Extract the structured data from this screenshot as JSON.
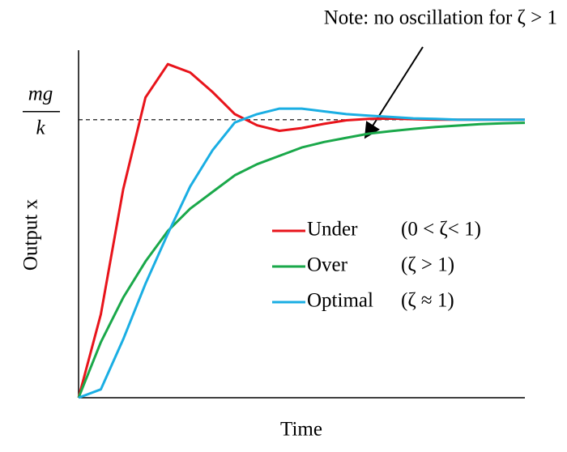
{
  "chart_data": {
    "type": "line",
    "annotation": "Note: no oscillation for ζ > 1",
    "xlabel": "Time",
    "ylabel": "Output x",
    "xlim": [
      0,
      10
    ],
    "ylim": [
      0,
      1.25
    ],
    "yticks": [
      {
        "value": 1,
        "label": {
          "numerator": "mg",
          "denominator": "k"
        }
      }
    ],
    "x": [
      0,
      0.5,
      1,
      1.5,
      2,
      2.5,
      3,
      3.5,
      4,
      4.5,
      5,
      5.5,
      6,
      6.5,
      7,
      7.5,
      8,
      8.5,
      9,
      9.5,
      10
    ],
    "series": [
      {
        "name": "Under",
        "condition": "(0 < ζ< 1)",
        "color": "#e8141b",
        "values": [
          0,
          0.3,
          0.75,
          1.08,
          1.2,
          1.17,
          1.1,
          1.02,
          0.98,
          0.96,
          0.97,
          0.985,
          0.998,
          1.003,
          1.004,
          1.002,
          1.0,
          1.0,
          1.0,
          1.0,
          1.0
        ]
      },
      {
        "name": "Over",
        "condition": "(ζ > 1)",
        "color": "#1aa84a",
        "values": [
          0,
          0.2,
          0.36,
          0.49,
          0.6,
          0.68,
          0.74,
          0.8,
          0.84,
          0.87,
          0.9,
          0.92,
          0.935,
          0.95,
          0.959,
          0.967,
          0.974,
          0.979,
          0.984,
          0.987,
          0.989
        ]
      },
      {
        "name": "Optimal",
        "condition": "(ζ ≈ 1)",
        "color": "#1aaee3",
        "values": [
          0,
          0.03,
          0.21,
          0.41,
          0.59,
          0.76,
          0.89,
          0.99,
          1.02,
          1.04,
          1.04,
          1.03,
          1.02,
          1.015,
          1.01,
          1.005,
          1.003,
          1.0,
          1.0,
          1.0,
          1.0
        ]
      }
    ]
  }
}
